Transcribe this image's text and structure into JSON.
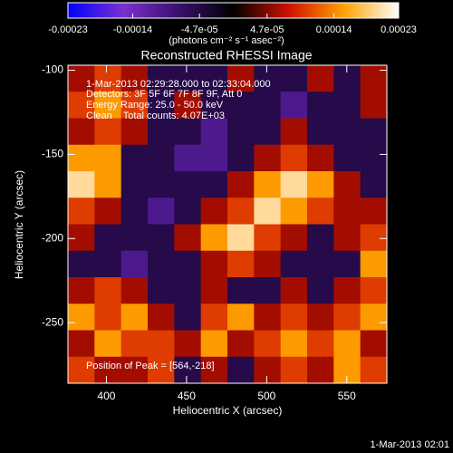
{
  "chart_data": {
    "type": "heatmap",
    "title": "Reconstructed RHESSI Image",
    "x_label": "Heliocentric X (arcsec)",
    "y_label": "Heliocentric Y (arcsec)",
    "colorbar_label": "(photons cm⁻² s⁻¹ asec⁻²)",
    "annotations": [
      "1-Mar-2013 02:29:28.000 to 02:33:04.000",
      "Detectors: 3F 5F 6F 7F 8F 9F, Att 0",
      "Energy Range: 25.0 - 50.0 keV",
      "Clean    Total counts: 4.07E+03"
    ],
    "peak_label": "Position of Peak = [564,-218]",
    "timestamp": "1-Mar-2013 02:01",
    "xlim": [
      376,
      575
    ],
    "ylim": [
      -286,
      -97
    ],
    "xticks": [
      400,
      450,
      500,
      550
    ],
    "yticks": [
      -100,
      -150,
      -200,
      -250
    ],
    "clim": [
      -0.00023,
      0.00023
    ],
    "cticks": [
      -0.00023,
      -0.00014,
      {
        "value": -4.7e-05,
        "label": "-4.7e-05"
      },
      {
        "value": 4.7e-05,
        "label": "4.7e-05"
      },
      0.00014,
      0.00023
    ],
    "colormap": [
      "#0000ff",
      "#7a30d0",
      "#3a1070",
      "#000000",
      "#d01000",
      "#ffa000",
      "#ffffff"
    ],
    "values": [
      [
        6e-05,
        0.0001,
        6e-05,
        -5e-05,
        -5e-05,
        -5e-05,
        6e-05,
        -5e-05,
        -5e-05,
        6e-05,
        -5e-05,
        6e-05
      ],
      [
        0.0001,
        0.00015,
        0.0001,
        -5e-05,
        6e-05,
        -5e-05,
        -5e-05,
        -5e-05,
        -0.0001,
        -5e-05,
        -5e-05,
        6e-05
      ],
      [
        6e-05,
        0.0001,
        6e-05,
        -5e-05,
        -5e-05,
        -0.0001,
        -5e-05,
        -5e-05,
        6e-05,
        -5e-05,
        -5e-05,
        -5e-05
      ],
      [
        0.00015,
        0.00015,
        -5e-05,
        -5e-05,
        -0.0001,
        -0.0001,
        -5e-05,
        6e-05,
        0.0001,
        6e-05,
        -5e-05,
        -5e-05
      ],
      [
        0.0002,
        0.00015,
        -5e-05,
        -5e-05,
        -5e-05,
        -5e-05,
        6e-05,
        0.00015,
        0.0002,
        0.00015,
        6e-05,
        -5e-05
      ],
      [
        0.0001,
        6e-05,
        -5e-05,
        -0.0001,
        -5e-05,
        6e-05,
        0.0001,
        0.0002,
        0.00015,
        0.0001,
        6e-05,
        6e-05
      ],
      [
        6e-05,
        -5e-05,
        -5e-05,
        -5e-05,
        6e-05,
        0.00015,
        0.0002,
        0.0001,
        6e-05,
        -5e-05,
        6e-05,
        0.0001
      ],
      [
        -5e-05,
        -5e-05,
        -0.0001,
        -5e-05,
        -5e-05,
        6e-05,
        0.0001,
        6e-05,
        -5e-05,
        -5e-05,
        -5e-05,
        0.00015
      ],
      [
        6e-05,
        0.0001,
        6e-05,
        -5e-05,
        -5e-05,
        6e-05,
        -5e-05,
        -5e-05,
        6e-05,
        -5e-05,
        6e-05,
        0.0001
      ],
      [
        0.00015,
        0.0001,
        0.00015,
        6e-05,
        -5e-05,
        0.0001,
        0.00015,
        6e-05,
        0.0001,
        6e-05,
        0.0001,
        0.00015
      ],
      [
        6e-05,
        0.00015,
        0.0001,
        0.0001,
        6e-05,
        0.00015,
        6e-05,
        0.0001,
        0.00015,
        0.0001,
        0.00015,
        6e-05
      ],
      [
        0.0001,
        6e-05,
        6e-05,
        0.0001,
        -5e-05,
        6e-05,
        -5e-05,
        6e-05,
        0.0001,
        6e-05,
        0.00015,
        0.0001
      ]
    ]
  }
}
